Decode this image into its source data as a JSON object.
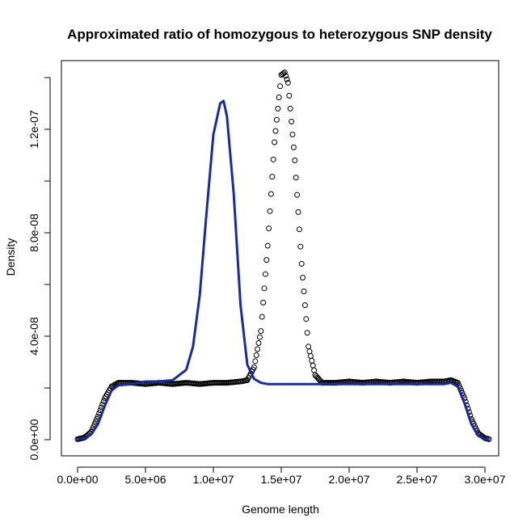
{
  "chart_data": {
    "type": "line",
    "title": "Approximated ratio of homozygous to heterozygous SNP density",
    "xlabel": "Genome length",
    "ylabel": "Density",
    "xlim": [
      0,
      30500000
    ],
    "ylim": [
      0,
      1.43e-07
    ],
    "x_ticks": [
      {
        "value": 0,
        "label": "0.0e+00"
      },
      {
        "value": 5000000,
        "label": "5.0e+06"
      },
      {
        "value": 10000000,
        "label": "1.0e+07"
      },
      {
        "value": 15000000,
        "label": "1.5e+07"
      },
      {
        "value": 20000000,
        "label": "2.0e+07"
      },
      {
        "value": 25000000,
        "label": "2.5e+07"
      },
      {
        "value": 30000000,
        "label": "3.0e+07"
      }
    ],
    "y_ticks": [
      {
        "value": 0,
        "label": "0.0e+00"
      },
      {
        "value": 2e-08,
        "label": ""
      },
      {
        "value": 4e-08,
        "label": "4.0e-08"
      },
      {
        "value": 6e-08,
        "label": ""
      },
      {
        "value": 8e-08,
        "label": "8.0e-08"
      },
      {
        "value": 1e-07,
        "label": ""
      },
      {
        "value": 1.2e-07,
        "label": "1.2e-07"
      },
      {
        "value": 1.4e-07,
        "label": ""
      }
    ],
    "series": [
      {
        "style": "points",
        "marker": "open-circle",
        "color": "#000000",
        "x": [
          0,
          500000,
          1000000,
          1500000,
          2000000,
          2500000,
          3000000,
          4000000,
          5000000,
          6000000,
          7000000,
          8000000,
          9000000,
          10000000,
          11000000,
          12000000,
          12500000,
          13000000,
          13500000,
          14000000,
          14500000,
          15000000,
          15250000,
          15500000,
          16000000,
          16500000,
          17000000,
          17500000,
          18000000,
          18500000,
          19000000,
          20000000,
          21000000,
          22000000,
          23000000,
          24000000,
          25000000,
          26000000,
          27000000,
          27500000,
          28000000,
          28500000,
          29000000,
          29500000,
          30000000,
          30300000
        ],
        "y": [
          2e-10,
          8e-10,
          3e-09,
          9e-09,
          1.6e-08,
          2.05e-08,
          2.2e-08,
          2.2e-08,
          2.15e-08,
          2.2e-08,
          2.15e-08,
          2.2e-08,
          2.15e-08,
          2.2e-08,
          2.2e-08,
          2.25e-08,
          2.3e-08,
          2.8e-08,
          4.2e-08,
          7.5e-08,
          1.15e-07,
          1.41e-07,
          1.42e-07,
          1.38e-07,
          1.08e-07,
          6.8e-08,
          3.6e-08,
          2.5e-08,
          2.2e-08,
          2.2e-08,
          2.2e-08,
          2.25e-08,
          2.2e-08,
          2.25e-08,
          2.2e-08,
          2.25e-08,
          2.2e-08,
          2.25e-08,
          2.25e-08,
          2.3e-08,
          2.2e-08,
          1.6e-08,
          8e-09,
          2.5e-09,
          6e-10,
          2e-10
        ]
      },
      {
        "style": "line",
        "color": "#1a2ba0",
        "x": [
          0,
          500000,
          1000000,
          1500000,
          2000000,
          2500000,
          3000000,
          4000000,
          5000000,
          6000000,
          7000000,
          8000000,
          8500000,
          9000000,
          9500000,
          10000000,
          10500000,
          10750000,
          11000000,
          11500000,
          12000000,
          12500000,
          13000000,
          13500000,
          14000000,
          15000000,
          16000000,
          17000000,
          18000000,
          19000000,
          20000000,
          21000000,
          22000000,
          23000000,
          24000000,
          25000000,
          26000000,
          27000000,
          27500000,
          28000000,
          28500000,
          29000000,
          29500000,
          30000000,
          30300000
        ],
        "y": [
          2e-10,
          5e-10,
          2e-09,
          6e-09,
          1.3e-08,
          1.9e-08,
          2.1e-08,
          2.15e-08,
          2.25e-08,
          2.25e-08,
          2.3e-08,
          2.7e-08,
          3.6e-08,
          5.6e-08,
          8.8e-08,
          1.18e-07,
          1.3e-07,
          1.31e-07,
          1.25e-07,
          9.5e-08,
          5.2e-08,
          2.9e-08,
          2.35e-08,
          2.2e-08,
          2.15e-08,
          2.15e-08,
          2.15e-08,
          2.15e-08,
          2.15e-08,
          2.15e-08,
          2.15e-08,
          2.15e-08,
          2.15e-08,
          2.15e-08,
          2.15e-08,
          2.15e-08,
          2.15e-08,
          2.15e-08,
          2.2e-08,
          2.05e-08,
          1.4e-08,
          6e-09,
          1.5e-09,
          3e-10,
          1e-10
        ]
      }
    ],
    "grid": false,
    "legend": "none"
  }
}
